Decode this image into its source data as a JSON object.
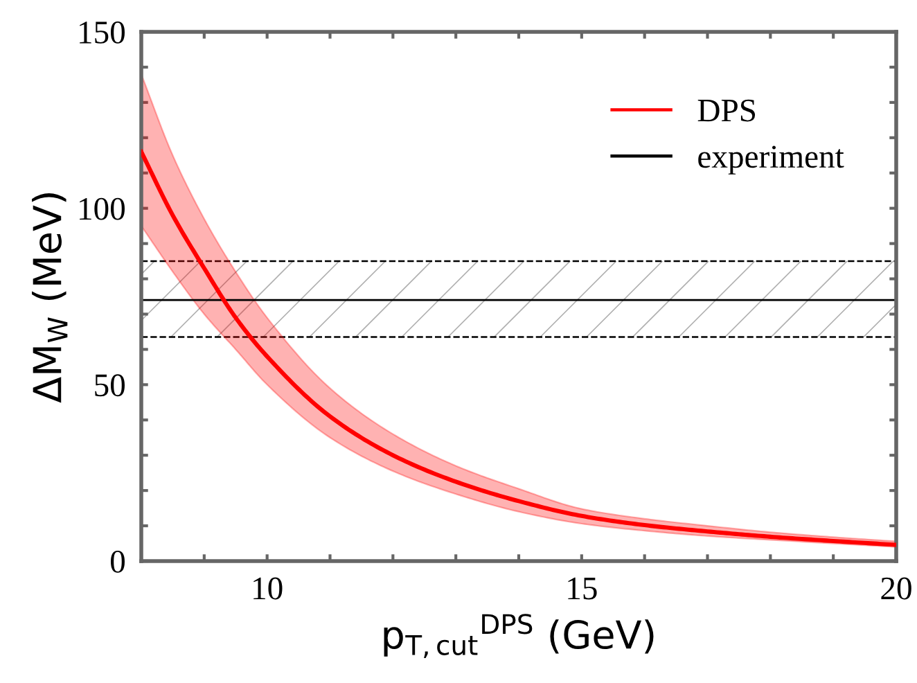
{
  "chart_data": {
    "type": "line",
    "xlabel": "p$_{T,cut}$$^{DPS}$ (GeV)",
    "ref_lines": [
      {
        "axis": "y",
        "value": 63.5,
        "color": "#000000",
        "line_style": "dashed"
      },
      {
        "axis": "y",
        "value": 85,
        "color": "#000000",
        "line_style": "dashed"
      }
    ],
    "bands": [
      {
        "axis": "y",
        "from": 63.5,
        "to": 85,
        "color": "#b0b0b0"
      }
    ],
    "ylabel": "ΔM$_{W}$ (MeV)",
    "xlim": [
      8,
      20
    ],
    "ylim": [
      0,
      150
    ],
    "xticks": [
      {
        "value": 9,
        "label": null
      },
      10,
      {
        "value": 11,
        "label": null
      },
      {
        "value": 12,
        "label": null
      },
      {
        "value": 13,
        "label": null
      },
      {
        "value": 14,
        "label": null
      },
      15,
      {
        "value": 16,
        "label": null
      },
      {
        "value": 17,
        "label": null
      },
      {
        "value": 18,
        "label": null
      },
      {
        "value": 19,
        "label": null
      },
      20
    ],
    "yticks": [
      0,
      {
        "value": 10,
        "label": null
      },
      {
        "value": 20,
        "label": null
      },
      {
        "value": 30,
        "label": null
      },
      {
        "value": 40,
        "label": null
      },
      50,
      {
        "value": 60,
        "label": null
      },
      {
        "value": 70,
        "label": null
      },
      {
        "value": 80,
        "label": null
      },
      {
        "value": 90,
        "label": null
      },
      100,
      {
        "value": 110,
        "label": null
      },
      {
        "value": 120,
        "label": null
      },
      {
        "value": 130,
        "label": null
      },
      {
        "value": 140,
        "label": null
      },
      150
    ],
    "grid": false,
    "legend": "top right",
    "series": [
      {
        "name": "DPS",
        "color": "#ff0000",
        "x": [
          8,
          8.5,
          9,
          9.5,
          10,
          11,
          12,
          13,
          14,
          15,
          16,
          17,
          18,
          19,
          20
        ],
        "values": [
          116,
          98,
          83,
          69,
          58,
          41,
          30,
          22.5,
          17,
          12.8,
          10.2,
          8.4,
          6.9,
          5.7,
          4.6
        ],
        "upper": [
          138,
          115,
          97,
          82,
          69,
          49,
          36,
          27,
          20.5,
          14.8,
          12,
          10,
          8.2,
          6.8,
          5.6
        ],
        "lower": [
          95,
          82,
          70,
          60,
          50,
          35,
          25.5,
          19,
          14,
          10.6,
          8.6,
          7.1,
          6,
          5,
          4
        ]
      },
      {
        "name": "experiment",
        "color": "#000000",
        "x": [
          8,
          20
        ],
        "values": [
          74,
          74
        ],
        "line_style": "solid"
      }
    ]
  }
}
